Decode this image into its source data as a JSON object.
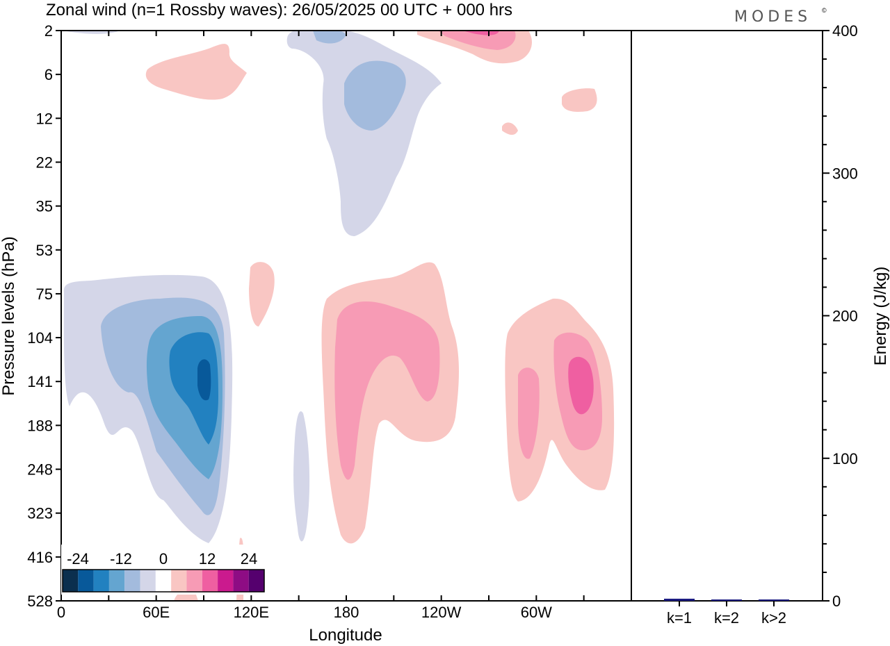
{
  "title": "Zonal wind (n=1 Rossby waves):  26/05/2025  00 UTC  + 000 hrs",
  "logo": "MODES",
  "logo_mark": "©",
  "chart_data": [
    {
      "type": "heatmap",
      "subtype": "filled-contour",
      "ylabel": "Pressure levels (hPa)",
      "xlabel": "Longitude",
      "y_scale": "log",
      "y_ticks": [
        "2",
        "6",
        "12",
        "22",
        "35",
        "53",
        "75",
        "104",
        "141",
        "188",
        "248",
        "323",
        "416",
        "528"
      ],
      "x_ticks": [
        "0",
        "60E",
        "120E",
        "180",
        "120W",
        "60W"
      ],
      "colorbar": {
        "labels": [
          "-24",
          "-12",
          "0",
          "12",
          "24"
        ],
        "levels": [
          -30,
          -25,
          -20,
          -15,
          -10,
          -5,
          5,
          10,
          15,
          20,
          25,
          30
        ],
        "colors": [
          "#0b2f4e",
          "#08599a",
          "#2281c0",
          "#64a5d0",
          "#a3bbdd",
          "#d4d6e8",
          "#ffffff",
          "#f9c6c3",
          "#f79bb5",
          "#ef5fa1",
          "#cb1a8e",
          "#8e0c84",
          "#55006e"
        ]
      },
      "features": [
        {
          "sign": "negative",
          "peak": -30,
          "lon": 93,
          "p": 141
        },
        {
          "sign": "positive",
          "peak": 15,
          "lon": 190,
          "p": 130
        },
        {
          "sign": "positive",
          "peak": 20,
          "lon": 328,
          "p": 141
        },
        {
          "sign": "negative",
          "peak": -10,
          "lon": 198,
          "p": 9
        },
        {
          "sign": "positive",
          "peak": 15,
          "lon": 263,
          "p": 2
        }
      ]
    },
    {
      "type": "bar",
      "ylabel": "Energy (J/kg)",
      "categories": [
        "k=1",
        "k=2",
        "k>2"
      ],
      "values": [
        1.5,
        0.3,
        0.8
      ],
      "ylim": [
        0,
        400
      ],
      "y_ticks": [
        "0",
        "100",
        "200",
        "300",
        "400"
      ],
      "color": "#1a1a80"
    }
  ]
}
